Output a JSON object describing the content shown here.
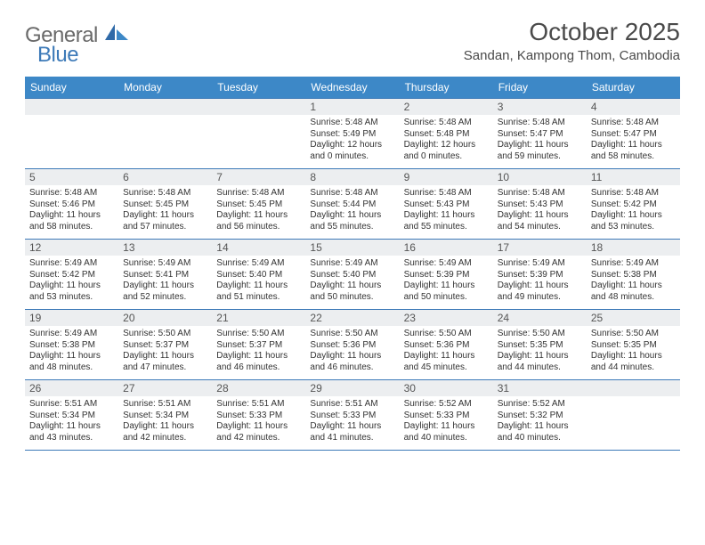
{
  "logo": {
    "gray": "General",
    "blue": "Blue"
  },
  "title": "October 2025",
  "location": "Sandan, Kampong Thom, Cambodia",
  "weekdays": [
    "Sunday",
    "Monday",
    "Tuesday",
    "Wednesday",
    "Thursday",
    "Friday",
    "Saturday"
  ],
  "colors": {
    "header_bg": "#3d88c7",
    "header_text": "#ffffff",
    "rule": "#3d7ab8",
    "daynum_bg": "#eceef0",
    "body_text": "#333333",
    "logo_gray": "#6a6a6a",
    "logo_blue": "#3d7ab8"
  },
  "weeks": [
    [
      {
        "n": "",
        "sr": "",
        "ss": "",
        "d1": "",
        "d2": ""
      },
      {
        "n": "",
        "sr": "",
        "ss": "",
        "d1": "",
        "d2": ""
      },
      {
        "n": "",
        "sr": "",
        "ss": "",
        "d1": "",
        "d2": ""
      },
      {
        "n": "1",
        "sr": "Sunrise: 5:48 AM",
        "ss": "Sunset: 5:49 PM",
        "d1": "Daylight: 12 hours",
        "d2": "and 0 minutes."
      },
      {
        "n": "2",
        "sr": "Sunrise: 5:48 AM",
        "ss": "Sunset: 5:48 PM",
        "d1": "Daylight: 12 hours",
        "d2": "and 0 minutes."
      },
      {
        "n": "3",
        "sr": "Sunrise: 5:48 AM",
        "ss": "Sunset: 5:47 PM",
        "d1": "Daylight: 11 hours",
        "d2": "and 59 minutes."
      },
      {
        "n": "4",
        "sr": "Sunrise: 5:48 AM",
        "ss": "Sunset: 5:47 PM",
        "d1": "Daylight: 11 hours",
        "d2": "and 58 minutes."
      }
    ],
    [
      {
        "n": "5",
        "sr": "Sunrise: 5:48 AM",
        "ss": "Sunset: 5:46 PM",
        "d1": "Daylight: 11 hours",
        "d2": "and 58 minutes."
      },
      {
        "n": "6",
        "sr": "Sunrise: 5:48 AM",
        "ss": "Sunset: 5:45 PM",
        "d1": "Daylight: 11 hours",
        "d2": "and 57 minutes."
      },
      {
        "n": "7",
        "sr": "Sunrise: 5:48 AM",
        "ss": "Sunset: 5:45 PM",
        "d1": "Daylight: 11 hours",
        "d2": "and 56 minutes."
      },
      {
        "n": "8",
        "sr": "Sunrise: 5:48 AM",
        "ss": "Sunset: 5:44 PM",
        "d1": "Daylight: 11 hours",
        "d2": "and 55 minutes."
      },
      {
        "n": "9",
        "sr": "Sunrise: 5:48 AM",
        "ss": "Sunset: 5:43 PM",
        "d1": "Daylight: 11 hours",
        "d2": "and 55 minutes."
      },
      {
        "n": "10",
        "sr": "Sunrise: 5:48 AM",
        "ss": "Sunset: 5:43 PM",
        "d1": "Daylight: 11 hours",
        "d2": "and 54 minutes."
      },
      {
        "n": "11",
        "sr": "Sunrise: 5:48 AM",
        "ss": "Sunset: 5:42 PM",
        "d1": "Daylight: 11 hours",
        "d2": "and 53 minutes."
      }
    ],
    [
      {
        "n": "12",
        "sr": "Sunrise: 5:49 AM",
        "ss": "Sunset: 5:42 PM",
        "d1": "Daylight: 11 hours",
        "d2": "and 53 minutes."
      },
      {
        "n": "13",
        "sr": "Sunrise: 5:49 AM",
        "ss": "Sunset: 5:41 PM",
        "d1": "Daylight: 11 hours",
        "d2": "and 52 minutes."
      },
      {
        "n": "14",
        "sr": "Sunrise: 5:49 AM",
        "ss": "Sunset: 5:40 PM",
        "d1": "Daylight: 11 hours",
        "d2": "and 51 minutes."
      },
      {
        "n": "15",
        "sr": "Sunrise: 5:49 AM",
        "ss": "Sunset: 5:40 PM",
        "d1": "Daylight: 11 hours",
        "d2": "and 50 minutes."
      },
      {
        "n": "16",
        "sr": "Sunrise: 5:49 AM",
        "ss": "Sunset: 5:39 PM",
        "d1": "Daylight: 11 hours",
        "d2": "and 50 minutes."
      },
      {
        "n": "17",
        "sr": "Sunrise: 5:49 AM",
        "ss": "Sunset: 5:39 PM",
        "d1": "Daylight: 11 hours",
        "d2": "and 49 minutes."
      },
      {
        "n": "18",
        "sr": "Sunrise: 5:49 AM",
        "ss": "Sunset: 5:38 PM",
        "d1": "Daylight: 11 hours",
        "d2": "and 48 minutes."
      }
    ],
    [
      {
        "n": "19",
        "sr": "Sunrise: 5:49 AM",
        "ss": "Sunset: 5:38 PM",
        "d1": "Daylight: 11 hours",
        "d2": "and 48 minutes."
      },
      {
        "n": "20",
        "sr": "Sunrise: 5:50 AM",
        "ss": "Sunset: 5:37 PM",
        "d1": "Daylight: 11 hours",
        "d2": "and 47 minutes."
      },
      {
        "n": "21",
        "sr": "Sunrise: 5:50 AM",
        "ss": "Sunset: 5:37 PM",
        "d1": "Daylight: 11 hours",
        "d2": "and 46 minutes."
      },
      {
        "n": "22",
        "sr": "Sunrise: 5:50 AM",
        "ss": "Sunset: 5:36 PM",
        "d1": "Daylight: 11 hours",
        "d2": "and 46 minutes."
      },
      {
        "n": "23",
        "sr": "Sunrise: 5:50 AM",
        "ss": "Sunset: 5:36 PM",
        "d1": "Daylight: 11 hours",
        "d2": "and 45 minutes."
      },
      {
        "n": "24",
        "sr": "Sunrise: 5:50 AM",
        "ss": "Sunset: 5:35 PM",
        "d1": "Daylight: 11 hours",
        "d2": "and 44 minutes."
      },
      {
        "n": "25",
        "sr": "Sunrise: 5:50 AM",
        "ss": "Sunset: 5:35 PM",
        "d1": "Daylight: 11 hours",
        "d2": "and 44 minutes."
      }
    ],
    [
      {
        "n": "26",
        "sr": "Sunrise: 5:51 AM",
        "ss": "Sunset: 5:34 PM",
        "d1": "Daylight: 11 hours",
        "d2": "and 43 minutes."
      },
      {
        "n": "27",
        "sr": "Sunrise: 5:51 AM",
        "ss": "Sunset: 5:34 PM",
        "d1": "Daylight: 11 hours",
        "d2": "and 42 minutes."
      },
      {
        "n": "28",
        "sr": "Sunrise: 5:51 AM",
        "ss": "Sunset: 5:33 PM",
        "d1": "Daylight: 11 hours",
        "d2": "and 42 minutes."
      },
      {
        "n": "29",
        "sr": "Sunrise: 5:51 AM",
        "ss": "Sunset: 5:33 PM",
        "d1": "Daylight: 11 hours",
        "d2": "and 41 minutes."
      },
      {
        "n": "30",
        "sr": "Sunrise: 5:52 AM",
        "ss": "Sunset: 5:33 PM",
        "d1": "Daylight: 11 hours",
        "d2": "and 40 minutes."
      },
      {
        "n": "31",
        "sr": "Sunrise: 5:52 AM",
        "ss": "Sunset: 5:32 PM",
        "d1": "Daylight: 11 hours",
        "d2": "and 40 minutes."
      },
      {
        "n": "",
        "sr": "",
        "ss": "",
        "d1": "",
        "d2": ""
      }
    ]
  ]
}
